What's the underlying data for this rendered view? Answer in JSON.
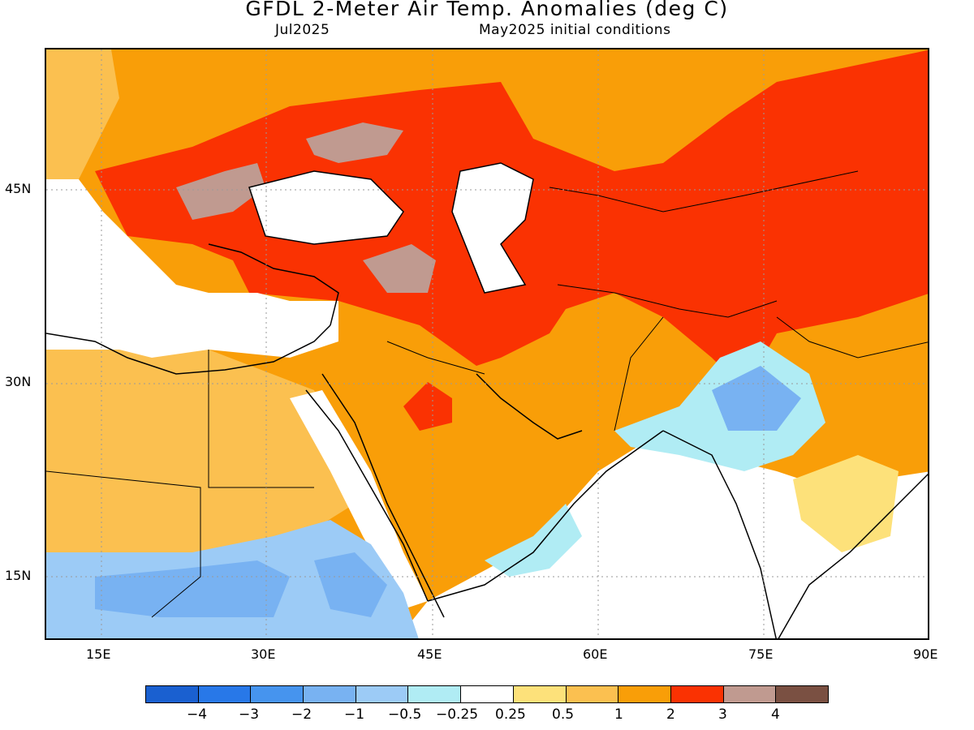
{
  "header": {
    "title": "GFDL 2-Meter Air Temp. Anomalies (deg C)",
    "month": "Jul2025",
    "conditions": "May2025 initial conditions"
  },
  "axes": {
    "lat_labels": [
      "45N",
      "30N",
      "15N"
    ],
    "lon_labels": [
      "15E",
      "30E",
      "45E",
      "60E",
      "75E",
      "90E"
    ]
  },
  "colorbar": {
    "labels": [
      "-4",
      "-3",
      "-2",
      "-1",
      "-0.5",
      "-0.25",
      "0.25",
      "0.5",
      "1",
      "2",
      "3",
      "4"
    ],
    "colors": [
      "#1a60d0",
      "#2878e8",
      "#4694ee",
      "#78b2f2",
      "#9ccbf6",
      "#b0ecf4",
      "#ffffff",
      "#fde17a",
      "#fbc050",
      "#f99e08",
      "#fa3202",
      "#c09a90",
      "#7a5042"
    ]
  }
}
